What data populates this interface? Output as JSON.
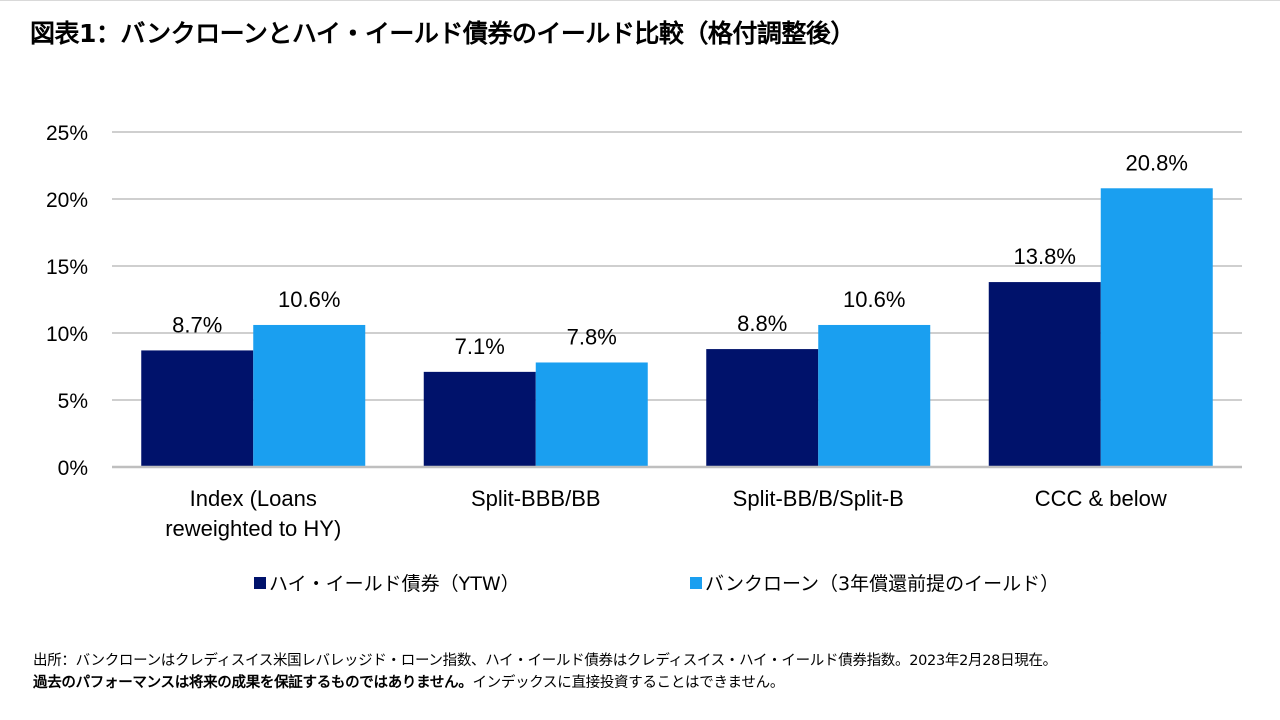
{
  "title": "図表1：バンクローンとハイ・イールド債券のイールド比較（格付調整後）",
  "chart_data": {
    "type": "bar",
    "categories": [
      [
        "Index (Loans",
        "reweighted to HY)"
      ],
      [
        "Split-BBB/BB"
      ],
      [
        "Split-BB/B/Split-B"
      ],
      [
        "CCC & below"
      ]
    ],
    "series": [
      {
        "name": "ハイ・イールド債券（YTW）",
        "color": "#00126b",
        "values": [
          8.7,
          7.1,
          8.8,
          13.8
        ],
        "labels": [
          "8.7%",
          "7.1%",
          "8.8%",
          "13.8%"
        ]
      },
      {
        "name": "バンクローン（3年償還前提のイールド）",
        "color": "#1a9ff0",
        "values": [
          10.6,
          7.8,
          10.6,
          20.8
        ],
        "labels": [
          "10.6%",
          "7.8%",
          "10.6%",
          "20.8%"
        ]
      }
    ],
    "yticks": [
      0,
      5,
      10,
      15,
      20,
      25
    ],
    "ytick_labels": [
      "0%",
      "5%",
      "10%",
      "15%",
      "20%",
      "25%"
    ],
    "ylim": [
      0,
      25
    ],
    "grid": true,
    "legend_position": "bottom"
  },
  "footer": {
    "line1": "出所：バンクローンはクレディスイス米国レバレッジド・ローン指数、ハイ・イールド債券はクレディスイス・ハイ・イールド債券指数。2023年2月28日現在。",
    "line2_bold": "過去のパフォーマンスは将来の成果を保証するものではありません。",
    "line2_normal": "インデックスに直接投資することはできません。"
  }
}
